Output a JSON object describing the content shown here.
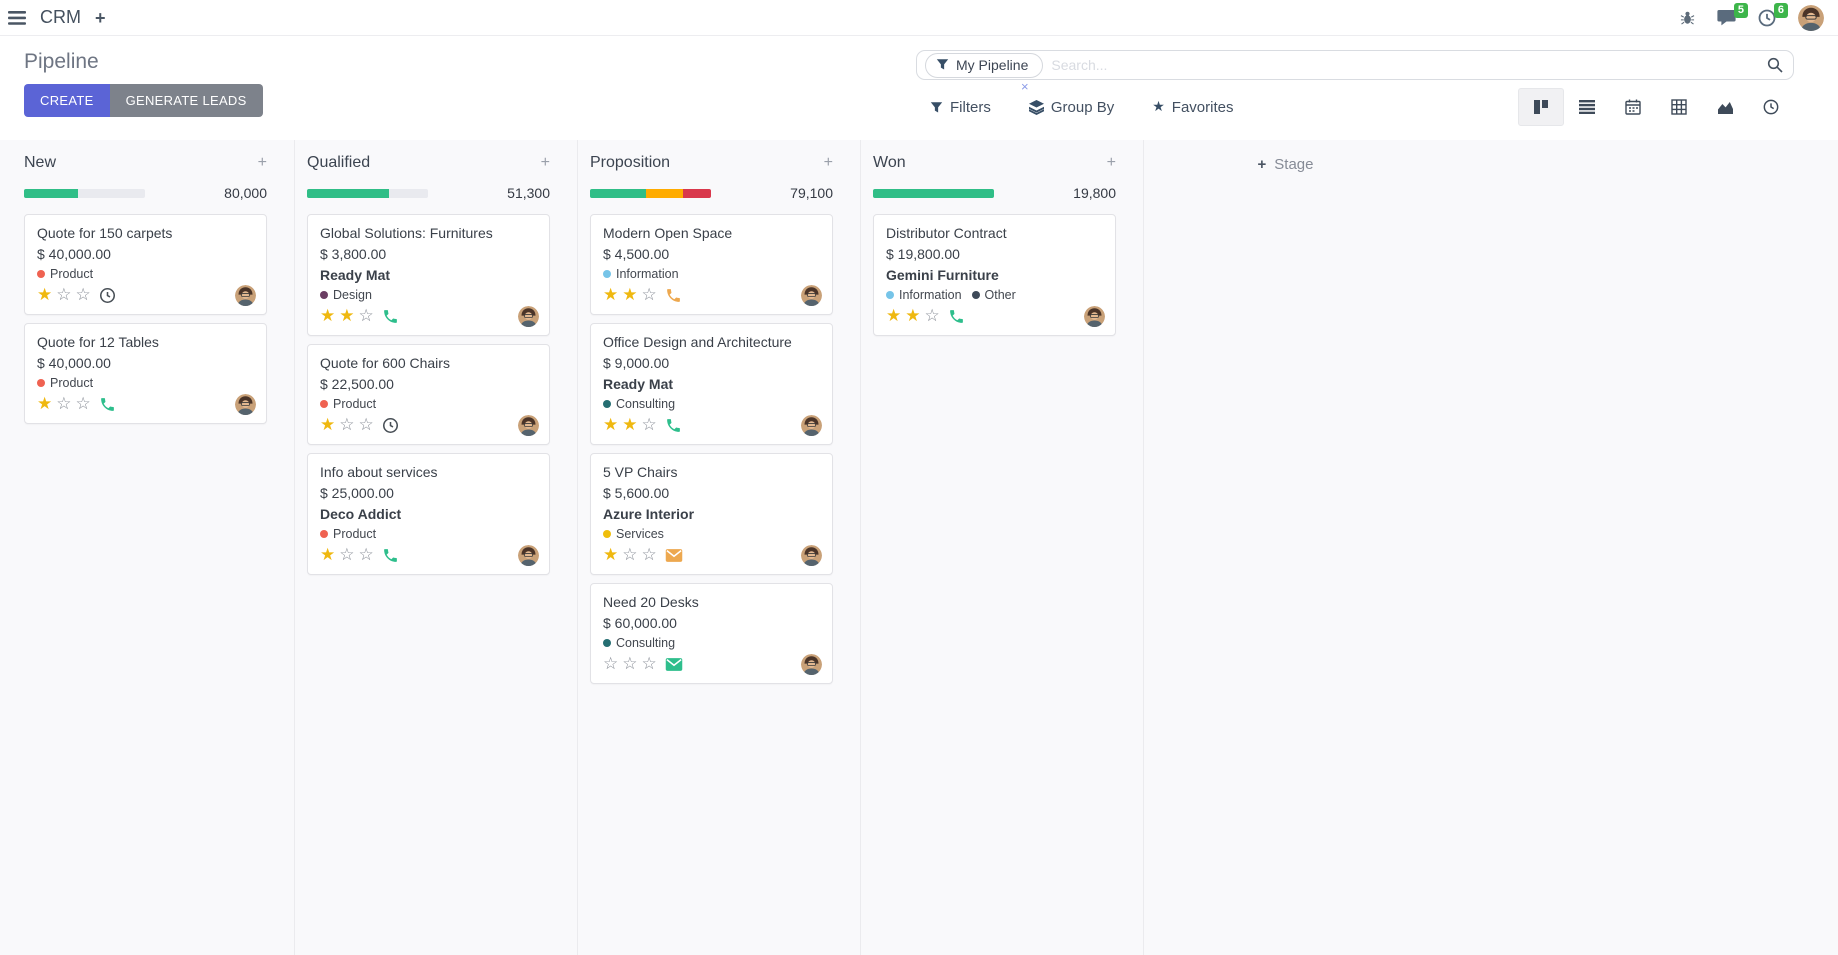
{
  "navbar": {
    "app_name": "CRM",
    "messages_badge": "5",
    "activities_badge": "6"
  },
  "control_panel": {
    "title": "Pipeline",
    "create_label": "CREATE",
    "generate_leads_label": "GENERATE LEADS",
    "search": {
      "facet_label": "My Pipeline",
      "placeholder": "Search..."
    },
    "filters_label": "Filters",
    "group_by_label": "Group By",
    "favorites_label": "Favorites"
  },
  "view_switcher": {
    "active": "kanban",
    "views": [
      "kanban",
      "list",
      "calendar",
      "pivot",
      "graph",
      "activity"
    ]
  },
  "kanban": {
    "add_stage_label": "Stage",
    "columns": [
      {
        "name": "New",
        "total": "80,000",
        "progress": [
          {
            "color": "#30be87",
            "pct": 45
          }
        ],
        "cards": [
          {
            "title": "Quote for 150 carpets",
            "amount": "$ 40,000.00",
            "partner": "",
            "tags": [
              {
                "label": "Product",
                "color": "#ef6251"
              }
            ],
            "stars": 1,
            "activity": {
              "icon": "clock",
              "color": "#495057"
            }
          },
          {
            "title": "Quote for 12 Tables",
            "amount": "$ 40,000.00",
            "partner": "",
            "tags": [
              {
                "label": "Product",
                "color": "#ef6251"
              }
            ],
            "stars": 1,
            "activity": {
              "icon": "phone",
              "color": "#2ebe8c"
            }
          }
        ]
      },
      {
        "name": "Qualified",
        "total": "51,300",
        "progress": [
          {
            "color": "#30be87",
            "pct": 68
          }
        ],
        "cards": [
          {
            "title": "Global Solutions: Furnitures",
            "amount": "$ 3,800.00",
            "partner": "Ready Mat",
            "tags": [
              {
                "label": "Design",
                "color": "#6b3e63"
              }
            ],
            "stars": 2,
            "activity": {
              "icon": "phone",
              "color": "#2ebe8c"
            }
          },
          {
            "title": "Quote for 600 Chairs",
            "amount": "$ 22,500.00",
            "partner": "",
            "tags": [
              {
                "label": "Product",
                "color": "#ef6251"
              }
            ],
            "stars": 1,
            "activity": {
              "icon": "clock",
              "color": "#495057"
            }
          },
          {
            "title": "Info about services",
            "amount": "$ 25,000.00",
            "partner": "Deco Addict",
            "tags": [
              {
                "label": "Product",
                "color": "#ef6251"
              }
            ],
            "stars": 1,
            "activity": {
              "icon": "phone",
              "color": "#2ebe8c"
            }
          }
        ]
      },
      {
        "name": "Proposition",
        "total": "79,100",
        "progress": [
          {
            "color": "#30be87",
            "pct": 46
          },
          {
            "color": "#ffac00",
            "pct": 31
          },
          {
            "color": "#d9384c",
            "pct": 23
          }
        ],
        "cards": [
          {
            "title": "Modern Open Space",
            "amount": "$ 4,500.00",
            "partner": "",
            "tags": [
              {
                "label": "Information",
                "color": "#76c4e8"
              }
            ],
            "stars": 2,
            "activity": {
              "icon": "phone",
              "color": "#eda84f"
            }
          },
          {
            "title": "Office Design and Architecture",
            "amount": "$ 9,000.00",
            "partner": "Ready Mat",
            "tags": [
              {
                "label": "Consulting",
                "color": "#256e72"
              }
            ],
            "stars": 2,
            "activity": {
              "icon": "phone",
              "color": "#2ebe8c"
            }
          },
          {
            "title": "5 VP Chairs",
            "amount": "$ 5,600.00",
            "partner": "Azure Interior",
            "tags": [
              {
                "label": "Services",
                "color": "#efbe0b"
              }
            ],
            "stars": 1,
            "activity": {
              "icon": "mail",
              "color": "#eda84f"
            }
          },
          {
            "title": "Need 20 Desks",
            "amount": "$ 60,000.00",
            "partner": "",
            "tags": [
              {
                "label": "Consulting",
                "color": "#256e72"
              }
            ],
            "stars": 0,
            "activity": {
              "icon": "mail",
              "color": "#2ebe8c"
            }
          }
        ]
      },
      {
        "name": "Won",
        "total": "19,800",
        "progress": [
          {
            "color": "#30be87",
            "pct": 100
          }
        ],
        "cards": [
          {
            "title": "Distributor Contract",
            "amount": "$ 19,800.00",
            "partner": "Gemini Furniture",
            "tags": [
              {
                "label": "Information",
                "color": "#76c4e8"
              },
              {
                "label": "Other",
                "color": "#3e4a59"
              }
            ],
            "stars": 2,
            "activity": {
              "icon": "phone",
              "color": "#2ebe8c"
            }
          }
        ]
      }
    ]
  },
  "icons": {
    "apps-menu-icon": "hamburger",
    "add-menu-icon": "plus",
    "bug-icon": "bug",
    "messages-icon": "chat-bubble",
    "activities-icon": "clock",
    "filter-icon": "funnel",
    "group-by-icon": "layers",
    "favorites-icon": "star",
    "search-icon": "magnifier",
    "kanban-view-icon": "kanban-columns",
    "list-view-icon": "horizontal-bars",
    "calendar-view-icon": "calendar",
    "pivot-view-icon": "grid-table",
    "graph-view-icon": "area-chart",
    "activity-view-icon": "clock",
    "priority-star-icon": "star",
    "activity-clock-icon": "clock",
    "activity-phone-icon": "phone-handset",
    "activity-mail-icon": "envelope"
  },
  "colors": {
    "primary_button": "#5b64d6",
    "secondary_button": "#7d828b",
    "badge_green": "#3db54a",
    "progress_green": "#30be87",
    "progress_orange": "#ffac00",
    "progress_red": "#d9384c",
    "star_gold": "#efb810"
  }
}
